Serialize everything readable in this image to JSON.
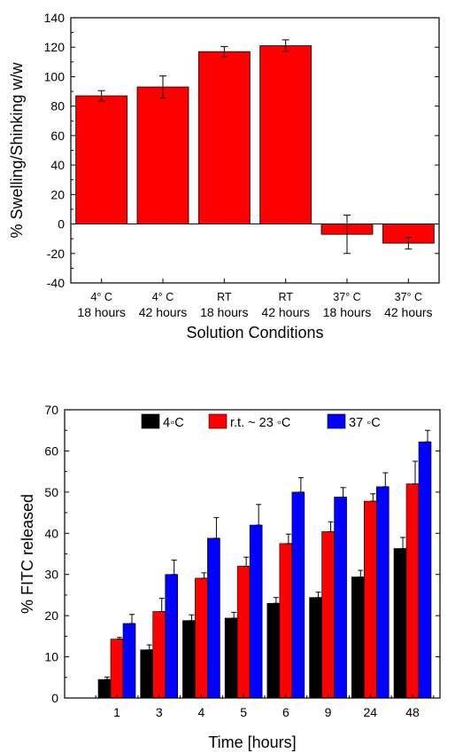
{
  "chart_data": [
    {
      "type": "bar",
      "title": "",
      "xlabel": "Solution Conditions",
      "ylabel": "% Swelling/Shinking w/w",
      "ylim": [
        -40,
        140
      ],
      "yticks": [
        -40,
        -20,
        0,
        20,
        40,
        60,
        80,
        100,
        120,
        140
      ],
      "categories": [
        [
          "4° C",
          "18 hours"
        ],
        [
          "4° C",
          "42 hours"
        ],
        [
          "RT",
          "18 hours"
        ],
        [
          "RT",
          "42 hours"
        ],
        [
          "37° C",
          "18 hours"
        ],
        [
          "37° C",
          "42 hours"
        ]
      ],
      "values": [
        87,
        93,
        117,
        121,
        -7,
        -13
      ],
      "errors": [
        3.5,
        7.5,
        3.5,
        4,
        13,
        4
      ],
      "color": "#ff0000",
      "grid": false
    },
    {
      "type": "bar",
      "title": "",
      "xlabel": "Time [hours]",
      "ylabel": "% FITC released",
      "ylim": [
        0,
        70
      ],
      "yticks": [
        0,
        10,
        20,
        30,
        40,
        50,
        60,
        70
      ],
      "categories": [
        "1",
        "3",
        "4",
        "5",
        "6",
        "9",
        "24",
        "48"
      ],
      "legend_position": "top",
      "grid": false,
      "series": [
        {
          "name": "4◦C",
          "color": "#000000",
          "values": [
            4.5,
            11.7,
            18.8,
            19.4,
            23,
            24.4,
            29.4,
            36.3
          ],
          "errors": [
            0.6,
            1.2,
            1.4,
            1.4,
            1.4,
            1.3,
            1.6,
            2.7
          ]
        },
        {
          "name": "r.t. ~ 23 ◦C",
          "color": "#ff0000",
          "values": [
            14.3,
            21,
            29.1,
            32,
            37.5,
            40.4,
            47.8,
            52
          ],
          "errors": [
            0.4,
            3.2,
            1.3,
            2.2,
            2.3,
            2.4,
            1.8,
            5.5
          ]
        },
        {
          "name": "37 ◦C",
          "color": "#0000ff",
          "values": [
            18.1,
            30,
            38.8,
            42,
            50,
            48.8,
            51.3,
            62.2
          ],
          "errors": [
            2.2,
            3.5,
            5,
            5,
            3.5,
            2.3,
            3.4,
            2.8
          ]
        }
      ]
    }
  ]
}
